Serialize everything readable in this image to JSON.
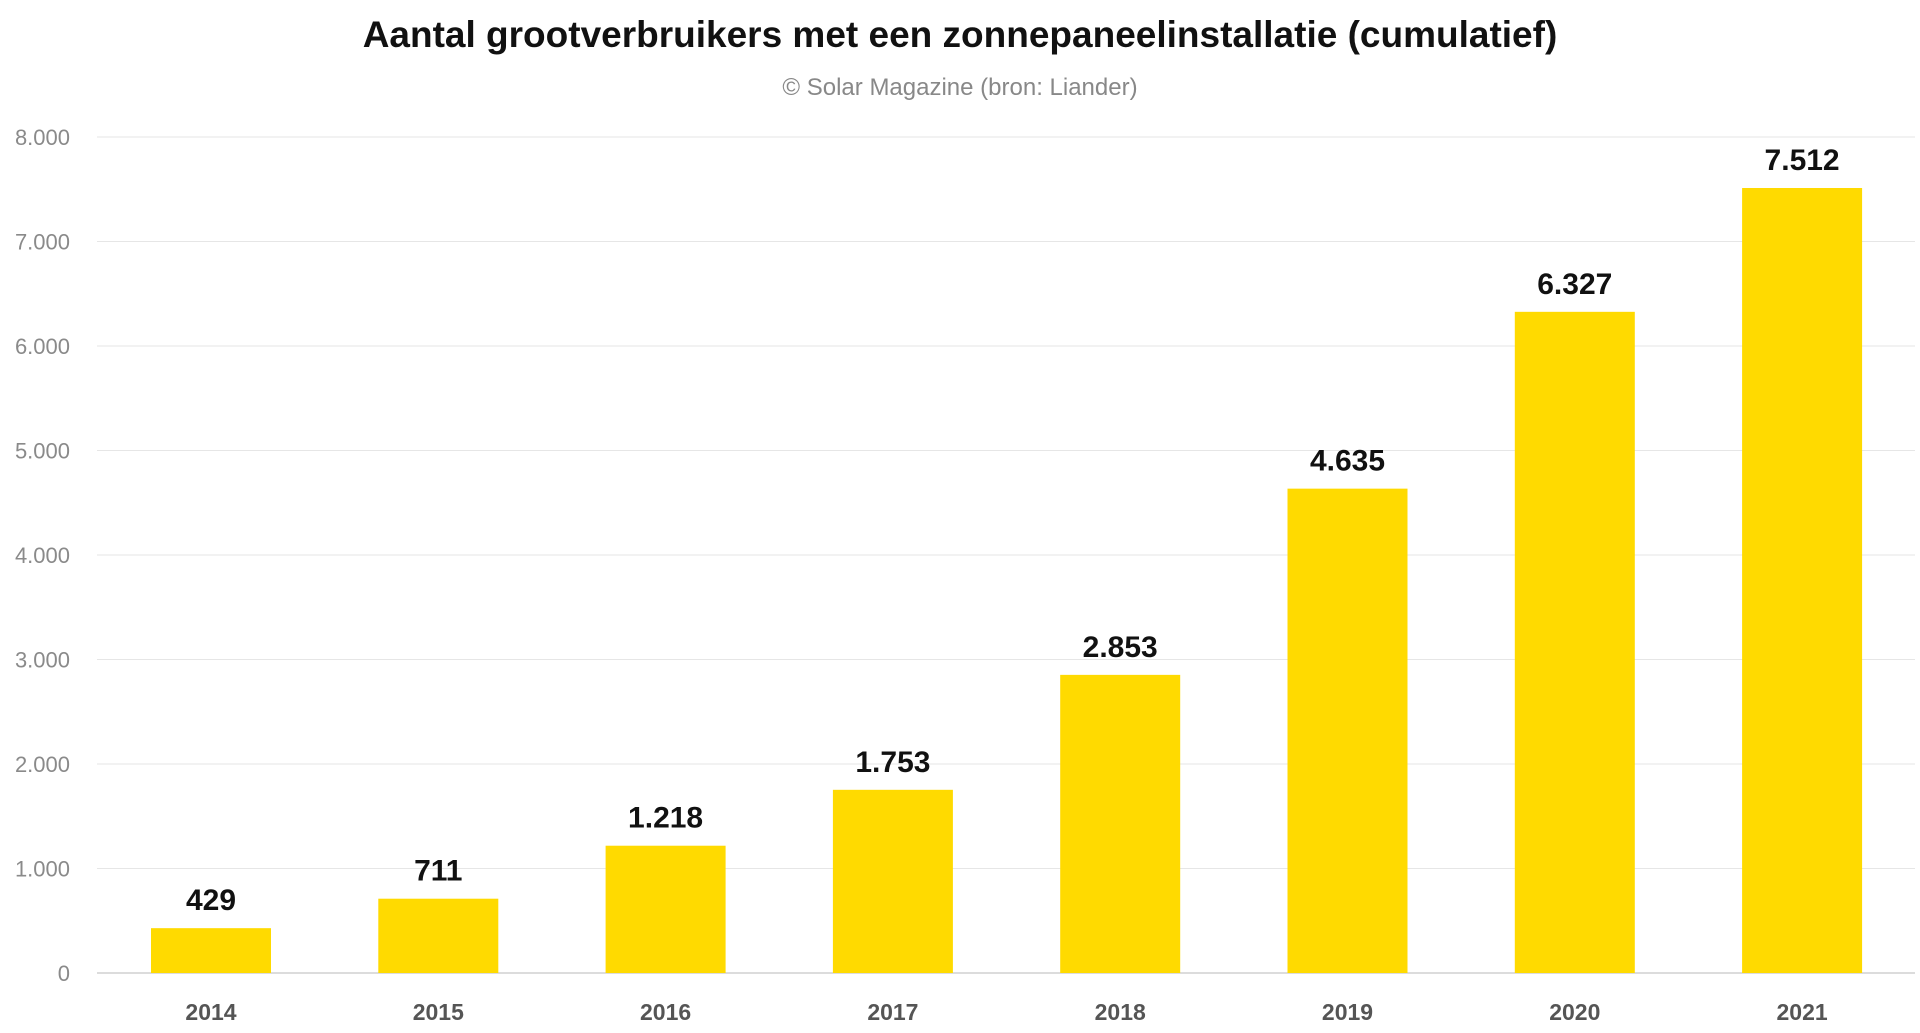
{
  "chart_data": {
    "type": "bar",
    "title": "Aantal grootverbruikers met een zonnepaneelinstallatie (cumulatief)",
    "subtitle": "© Solar Magazine (bron: Liander)",
    "categories": [
      "2014",
      "2015",
      "2016",
      "2017",
      "2018",
      "2019",
      "2020",
      "2021"
    ],
    "values": [
      429,
      711,
      1218,
      1753,
      2853,
      4635,
      6327,
      7512
    ],
    "data_labels": [
      "429",
      "711",
      "1.218",
      "1.753",
      "2.853",
      "4.635",
      "6.327",
      "7.512"
    ],
    "ylim": [
      0,
      8000
    ],
    "yticks": [
      0,
      1000,
      2000,
      3000,
      4000,
      5000,
      6000,
      7000,
      8000
    ],
    "ytick_labels": [
      "0",
      "1.000",
      "2.000",
      "3.000",
      "4.000",
      "5.000",
      "6.000",
      "7.000",
      "8.000"
    ],
    "xlabel": "",
    "ylabel": "",
    "grid": true,
    "legend": "none",
    "bar_color": "#FFDA00"
  }
}
